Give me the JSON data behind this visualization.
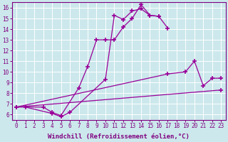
{
  "series": [
    {
      "x": [
        0,
        3,
        4,
        5,
        7,
        8,
        9,
        10,
        11,
        12,
        13,
        14,
        15,
        16,
        17
      ],
      "y": [
        6.7,
        6.7,
        6.2,
        5.9,
        8.5,
        10.5,
        13.0,
        13.0,
        13.0,
        14.2,
        15.0,
        16.3,
        15.3,
        15.2,
        14.1
      ]
    },
    {
      "x": [
        1,
        4,
        5,
        6,
        10,
        11,
        12,
        13,
        14,
        15,
        16
      ],
      "y": [
        6.7,
        6.1,
        5.8,
        6.2,
        9.3,
        15.3,
        14.9,
        15.7,
        15.9,
        15.3,
        15.2
      ]
    },
    {
      "x": [
        0,
        23
      ],
      "y": [
        6.7,
        8.3
      ]
    },
    {
      "x": [
        0,
        17,
        19,
        20,
        21,
        22,
        23
      ],
      "y": [
        6.7,
        9.8,
        10.0,
        11.0,
        8.7,
        9.4,
        9.4
      ]
    }
  ],
  "line_color": "#990099",
  "marker": "+",
  "markersize": 5,
  "markeredgewidth": 1.2,
  "linewidth": 0.9,
  "xlabel": "Windchill (Refroidissement éolien,°C)",
  "xlabel_fontsize": 6.5,
  "xtick_labels": [
    "0",
    "1",
    "2",
    "3",
    "4",
    "5",
    "6",
    "7",
    "8",
    "9",
    "10",
    "11",
    "12",
    "13",
    "14",
    "15",
    "16",
    "17",
    "18",
    "19",
    "20",
    "21",
    "22",
    "23"
  ],
  "xlim": [
    -0.5,
    23.5
  ],
  "ylim": [
    5.5,
    16.5
  ],
  "yticks": [
    6,
    7,
    8,
    9,
    10,
    11,
    12,
    13,
    14,
    15,
    16
  ],
  "bg_color": "#cce8ec",
  "grid_color": "#ffffff",
  "tick_color": "#800080",
  "label_color": "#800080",
  "tick_fontsize": 5.5
}
